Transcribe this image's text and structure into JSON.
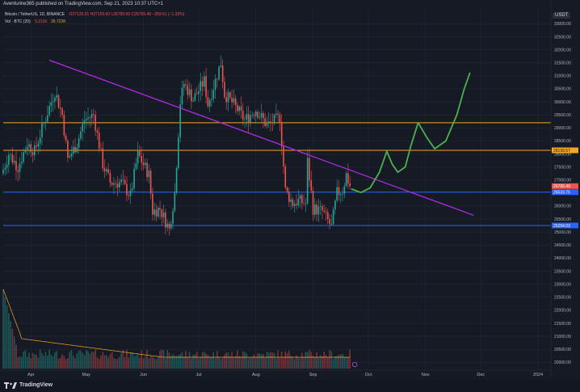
{
  "caption": "Aventurine365 published on TradingView.com, Sep 21, 2023 10:37 UTC+1",
  "legend": {
    "symbol": "Bitcoin / TetherUS, 1D, BINANCE",
    "ohlc": "O27125.01 H27159.60 L26750.00 C26765.49 −359.51 (−1.33%)",
    "volume_label": "Vol · BTC (20)",
    "volume_value": "5.211K",
    "volume_ma": "26.722K"
  },
  "currency": "USDT",
  "brand": "TradingView",
  "colors": {
    "up": "#26a69a",
    "down": "#ef5350",
    "orange": "#f5a623",
    "blue": "#2962ff",
    "trendline": "#a62bd8",
    "projection": "#4caf50",
    "grid": "#232836",
    "axis_text": "#b2b5be",
    "volume_ma": "#f5a623"
  },
  "chart_data": {
    "type": "candlestick",
    "price_axis": {
      "min": 19700,
      "max": 33600,
      "ticks": [
        {
          "v": 33000,
          "label": "33000.00"
        },
        {
          "v": 32500,
          "label": "32500.00"
        },
        {
          "v": 32000,
          "label": "32000.00"
        },
        {
          "v": 31500,
          "label": "31500.00"
        },
        {
          "v": 31000,
          "label": "31000.00"
        },
        {
          "v": 30500,
          "label": "30500.00"
        },
        {
          "v": 30000,
          "label": "30000.00"
        },
        {
          "v": 29500,
          "label": "29500.00"
        },
        {
          "v": 29000,
          "label": "29000.00"
        },
        {
          "v": 28500,
          "label": "28500.00"
        },
        {
          "v": 28000,
          "label": "28000.00"
        },
        {
          "v": 27500,
          "label": "27500.00"
        },
        {
          "v": 27000,
          "label": "27000.00"
        },
        {
          "v": 26000,
          "label": "26000.00"
        },
        {
          "v": 25500,
          "label": "25500.00"
        },
        {
          "v": 25000,
          "label": "25000.00"
        },
        {
          "v": 24500,
          "label": "24500.00"
        },
        {
          "v": 24000,
          "label": "24000.00"
        },
        {
          "v": 23500,
          "label": "23500.00"
        },
        {
          "v": 23000,
          "label": "23000.00"
        },
        {
          "v": 22500,
          "label": "22500.00"
        },
        {
          "v": 22000,
          "label": "22000.00"
        },
        {
          "v": 21500,
          "label": "21500.00"
        },
        {
          "v": 21000,
          "label": "21000.00"
        },
        {
          "v": 20500,
          "label": "20500.00"
        },
        {
          "v": 20000,
          "label": "20000.00"
        }
      ]
    },
    "time_axis": {
      "start": "2023-03-17",
      "end": "2024-01-08",
      "labels": [
        {
          "date": "2023-04-01",
          "label": "Apr"
        },
        {
          "date": "2023-05-01",
          "label": "May"
        },
        {
          "date": "2023-06-01",
          "label": "Jun"
        },
        {
          "date": "2023-07-01",
          "label": "Jul"
        },
        {
          "date": "2023-08-01",
          "label": "Aug"
        },
        {
          "date": "2023-09-01",
          "label": "Sep"
        },
        {
          "date": "2023-10-01",
          "label": "Oct"
        },
        {
          "date": "2023-11-01",
          "label": "Nov"
        },
        {
          "date": "2023-12-01",
          "label": "Dec"
        },
        {
          "date": "2024-01-01",
          "label": "2024"
        }
      ]
    },
    "price_path": [
      {
        "date": "2023-03-17",
        "close": 27400
      },
      {
        "date": "2023-03-20",
        "close": 28000
      },
      {
        "date": "2023-03-25",
        "close": 27500
      },
      {
        "date": "2023-03-30",
        "close": 28400
      },
      {
        "date": "2023-04-03",
        "close": 28100
      },
      {
        "date": "2023-04-10",
        "close": 29600
      },
      {
        "date": "2023-04-14",
        "close": 30400
      },
      {
        "date": "2023-04-18",
        "close": 29500
      },
      {
        "date": "2023-04-21",
        "close": 27800
      },
      {
        "date": "2023-04-26",
        "close": 28400
      },
      {
        "date": "2023-04-30",
        "close": 29300
      },
      {
        "date": "2023-05-05",
        "close": 29500
      },
      {
        "date": "2023-05-10",
        "close": 27600
      },
      {
        "date": "2023-05-14",
        "close": 26900
      },
      {
        "date": "2023-05-20",
        "close": 26900
      },
      {
        "date": "2023-05-25",
        "close": 26400
      },
      {
        "date": "2023-05-29",
        "close": 28000
      },
      {
        "date": "2023-06-04",
        "close": 27200
      },
      {
        "date": "2023-06-06",
        "close": 25800
      },
      {
        "date": "2023-06-10",
        "close": 25900
      },
      {
        "date": "2023-06-15",
        "close": 25100
      },
      {
        "date": "2023-06-18",
        "close": 26500
      },
      {
        "date": "2023-06-21",
        "close": 30000
      },
      {
        "date": "2023-06-23",
        "close": 30700
      },
      {
        "date": "2023-06-28",
        "close": 30100
      },
      {
        "date": "2023-07-04",
        "close": 30800
      },
      {
        "date": "2023-07-06",
        "close": 29900
      },
      {
        "date": "2023-07-13",
        "close": 31500
      },
      {
        "date": "2023-07-15",
        "close": 30300
      },
      {
        "date": "2023-07-20",
        "close": 29900
      },
      {
        "date": "2023-07-26",
        "close": 29300
      },
      {
        "date": "2023-08-01",
        "close": 29700
      },
      {
        "date": "2023-08-07",
        "close": 29100
      },
      {
        "date": "2023-08-14",
        "close": 29400
      },
      {
        "date": "2023-08-17",
        "close": 26600
      },
      {
        "date": "2023-08-21",
        "close": 26100
      },
      {
        "date": "2023-08-24",
        "close": 26200
      },
      {
        "date": "2023-08-28",
        "close": 26100
      },
      {
        "date": "2023-08-29",
        "close": 27700
      },
      {
        "date": "2023-09-01",
        "close": 25900
      },
      {
        "date": "2023-09-06",
        "close": 25800
      },
      {
        "date": "2023-09-11",
        "close": 25200
      },
      {
        "date": "2023-09-14",
        "close": 26500
      },
      {
        "date": "2023-09-17",
        "close": 26600
      },
      {
        "date": "2023-09-19",
        "close": 27200
      },
      {
        "date": "2023-09-21",
        "close": 26765
      }
    ],
    "horizontal_levels": [
      {
        "value": 29200,
        "color": "orange"
      },
      {
        "value": 28139.57,
        "label": "28139.57",
        "color": "orange"
      },
      {
        "value": 26533.75,
        "label": "26533.75",
        "color": "blue"
      },
      {
        "value": 25254.03,
        "label": "25254.03",
        "color": "blue"
      }
    ],
    "last_price": {
      "value": 26765.49,
      "label": "26765.49"
    },
    "trendline": [
      {
        "date": "2023-04-11",
        "price": 31600
      },
      {
        "date": "2023-11-27",
        "price": 25650
      }
    ],
    "projection": [
      {
        "date": "2023-09-22",
        "price": 26650
      },
      {
        "date": "2023-09-27",
        "price": 26520
      },
      {
        "date": "2023-10-02",
        "price": 26700
      },
      {
        "date": "2023-10-07",
        "price": 27300
      },
      {
        "date": "2023-10-11",
        "price": 28100
      },
      {
        "date": "2023-10-14",
        "price": 27600
      },
      {
        "date": "2023-10-17",
        "price": 27300
      },
      {
        "date": "2023-10-21",
        "price": 27500
      },
      {
        "date": "2023-10-24",
        "price": 28300
      },
      {
        "date": "2023-10-28",
        "price": 29200
      },
      {
        "date": "2023-11-02",
        "price": 28600
      },
      {
        "date": "2023-11-06",
        "price": 28200
      },
      {
        "date": "2023-11-12",
        "price": 28500
      },
      {
        "date": "2023-11-18",
        "price": 29500
      },
      {
        "date": "2023-11-22",
        "price": 30500
      },
      {
        "date": "2023-11-25",
        "price": 31100
      }
    ],
    "volume": {
      "first_bar_btc": 100000,
      "scale_top_btc": 100000
    }
  }
}
